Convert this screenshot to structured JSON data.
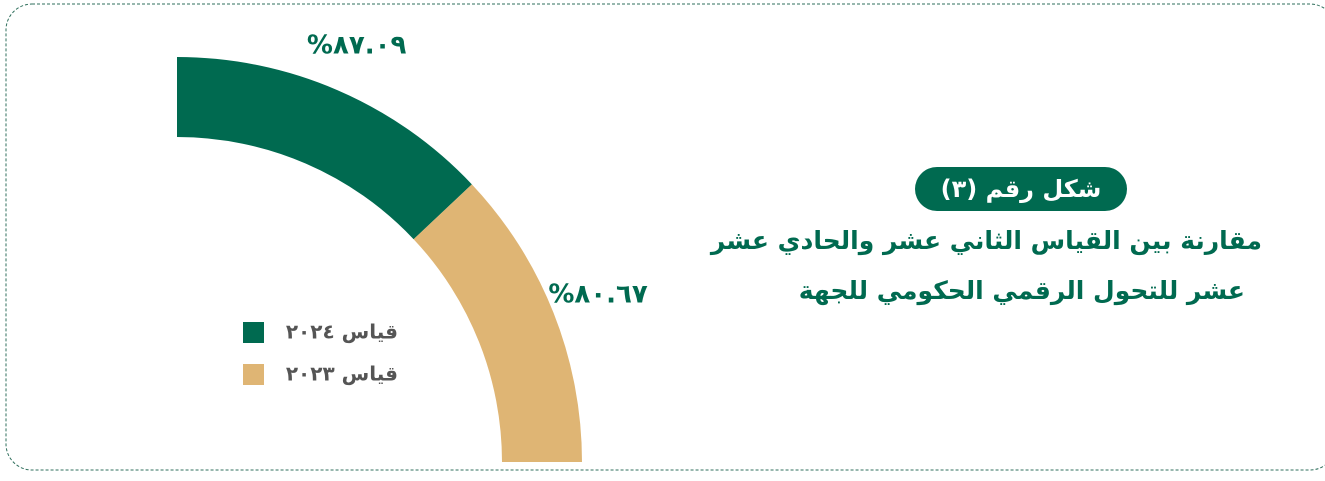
{
  "chart_data": {
    "type": "pie",
    "badge": "شكل رقم (٣)",
    "title": [
      "مقارنة بين القياس الثاني عشر والحادي عشر",
      "عشر للتحول الرقمي الحكومي للجهة"
    ],
    "labels": [
      "قياس ٢٠٢٤",
      "قياس ٢٠٢٣"
    ],
    "values": [
      87.09,
      80.67
    ],
    "value_labels": [
      "%٨٧.٠٩",
      "%٨٠.٦٧"
    ],
    "colors": [
      "#006a50",
      "#dfb574"
    ]
  }
}
